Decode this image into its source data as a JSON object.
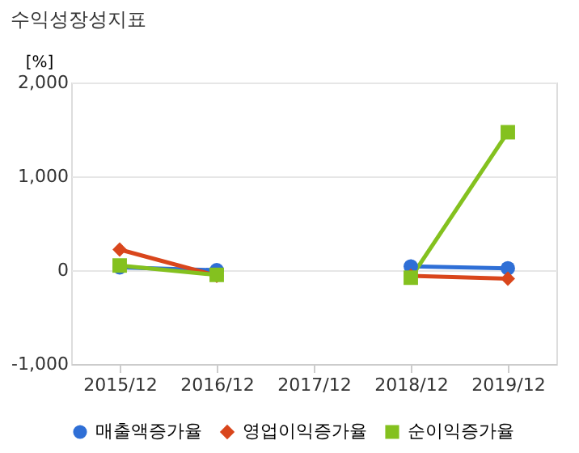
{
  "chart_data": {
    "type": "line",
    "title": "수익성장성지표",
    "ylabel": "[%]",
    "categories": [
      "2015/12",
      "2016/12",
      "2017/12",
      "2018/12",
      "2019/12"
    ],
    "series": [
      {
        "name": "매출액증가율",
        "color": "#2f6fd6",
        "marker": "circle",
        "values": [
          30,
          0,
          null,
          40,
          20
        ]
      },
      {
        "name": "영업이익증가율",
        "color": "#d9461c",
        "marker": "diamond",
        "values": [
          220,
          -60,
          null,
          -60,
          -90
        ]
      },
      {
        "name": "순이익증가율",
        "color": "#84c11f",
        "marker": "square",
        "values": [
          50,
          -50,
          null,
          -80,
          1470
        ]
      }
    ],
    "ylim": [
      -1000,
      2000
    ],
    "yticks": [
      {
        "value": -1000,
        "label": "-1,000"
      },
      0,
      {
        "value": 1000,
        "label": "1,000"
      },
      {
        "value": 2000,
        "label": "2,000"
      }
    ],
    "grid": "y",
    "legend": "bottom",
    "line_style": "solid"
  }
}
